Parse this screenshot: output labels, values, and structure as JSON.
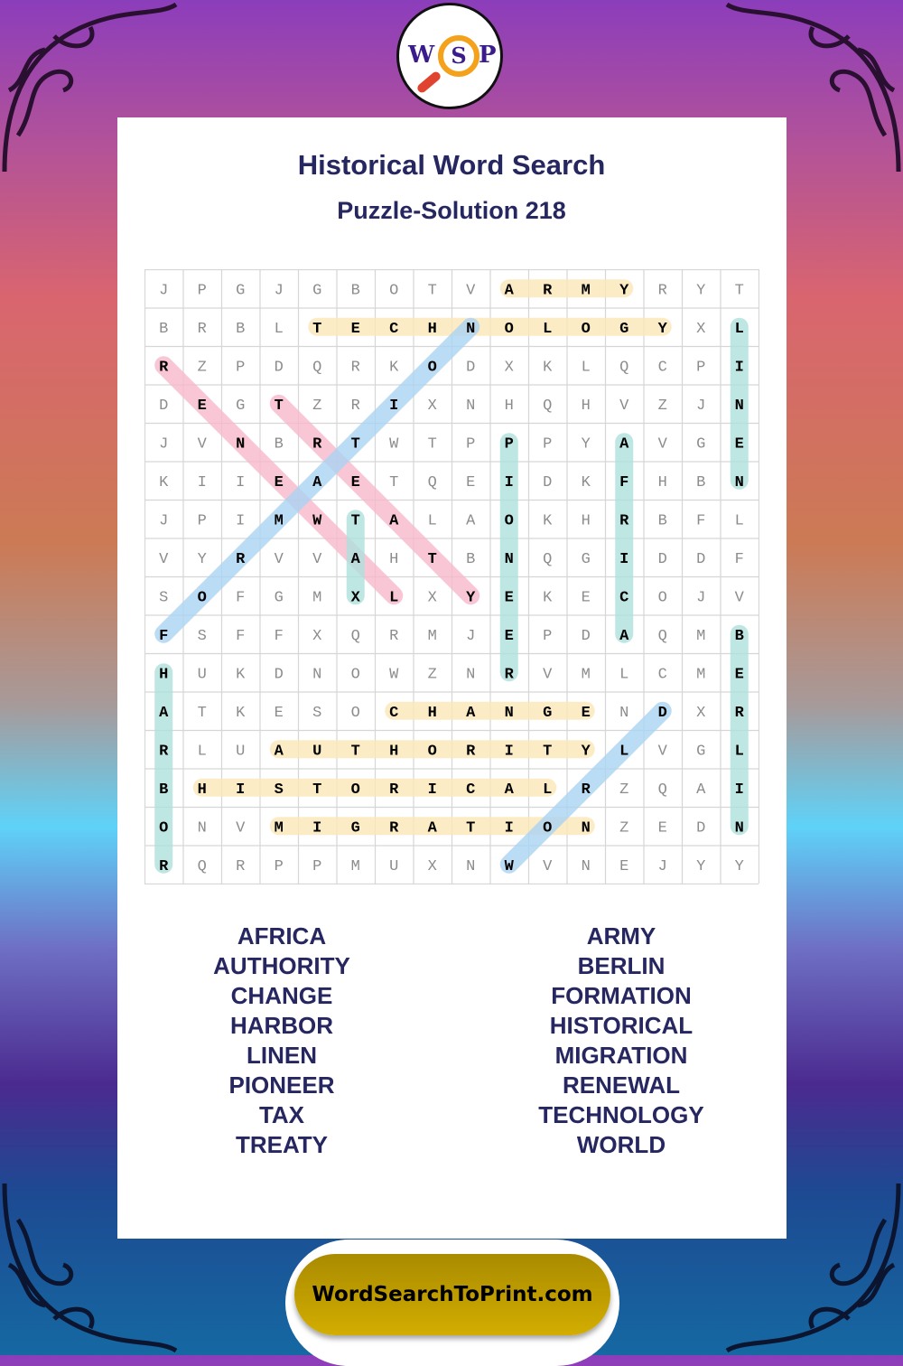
{
  "logo": {
    "letters": [
      "W",
      "S",
      "P"
    ]
  },
  "header": {
    "title": "Historical Word Search",
    "subtitle": "Puzzle-Solution 218"
  },
  "grid": {
    "rows": [
      "JPGJGBOTVARMYRYT",
      "BRBLTECHNOLOGYXL",
      "RZPDQRKODXKLQCPI",
      "DEGTZRIXNHQHVZJN",
      "JVNBRTWTPPPYAVGE",
      "KIIEAETQEIDKFHBN",
      "JPIMWTALAOKHRBFL",
      "VYRVVAHTBNQGIDDF",
      "SOFGMXLXYEKECOJV",
      "FSFFXQRMJEPDAQMB",
      "HUKDNOWZNRVMLCME",
      "ATKESOCHANGENDXR",
      "RLUAUTHORITYLVGL",
      "BHISTORICALRZQAI",
      "ONVMIGRATIONZEDN",
      "RQRPPMUXNWVNEJYY"
    ]
  },
  "highlight_colors": {
    "yellow": "#fbe7b8",
    "teal": "#aee0dc",
    "pink": "#f7b8ca",
    "blue": "#a9d3f3"
  },
  "solutions": [
    {
      "word": "ARMY",
      "start": [
        0,
        9
      ],
      "end": [
        0,
        12
      ],
      "color": "yellow"
    },
    {
      "word": "TECHNOLOGY",
      "start": [
        1,
        4
      ],
      "end": [
        1,
        13
      ],
      "color": "yellow"
    },
    {
      "word": "LINEN",
      "start": [
        1,
        15
      ],
      "end": [
        5,
        15
      ],
      "color": "teal"
    },
    {
      "word": "RENEWAL",
      "start": [
        2,
        0
      ],
      "end": [
        8,
        6
      ],
      "color": "pink"
    },
    {
      "word": "TREATY",
      "start": [
        3,
        3
      ],
      "end": [
        8,
        8
      ],
      "color": "pink"
    },
    {
      "word": "FORMATION",
      "start": [
        9,
        0
      ],
      "end": [
        1,
        8
      ],
      "color": "blue"
    },
    {
      "word": "TAX",
      "start": [
        6,
        5
      ],
      "end": [
        8,
        5
      ],
      "color": "teal"
    },
    {
      "word": "PIONEER",
      "start": [
        4,
        9
      ],
      "end": [
        10,
        9
      ],
      "color": "teal"
    },
    {
      "word": "AFRICA",
      "start": [
        4,
        12
      ],
      "end": [
        9,
        12
      ],
      "color": "teal"
    },
    {
      "word": "BERLIN",
      "start": [
        9,
        15
      ],
      "end": [
        14,
        15
      ],
      "color": "teal"
    },
    {
      "word": "HARBOR",
      "start": [
        10,
        0
      ],
      "end": [
        15,
        0
      ],
      "color": "teal"
    },
    {
      "word": "CHANGE",
      "start": [
        11,
        6
      ],
      "end": [
        11,
        11
      ],
      "color": "yellow"
    },
    {
      "word": "AUTHORITY",
      "start": [
        12,
        3
      ],
      "end": [
        12,
        11
      ],
      "color": "yellow"
    },
    {
      "word": "HISTORICAL",
      "start": [
        13,
        1
      ],
      "end": [
        13,
        10
      ],
      "color": "yellow"
    },
    {
      "word": "MIGRATION",
      "start": [
        14,
        3
      ],
      "end": [
        14,
        11
      ],
      "color": "yellow"
    },
    {
      "word": "WORLD",
      "start": [
        15,
        9
      ],
      "end": [
        11,
        13
      ],
      "color": "blue"
    }
  ],
  "word_list": {
    "left": [
      "AFRICA",
      "AUTHORITY",
      "CHANGE",
      "HARBOR",
      "LINEN",
      "PIONEER",
      "TAX",
      "TREATY"
    ],
    "right": [
      "ARMY",
      "BERLIN",
      "FORMATION",
      "HISTORICAL",
      "MIGRATION",
      "RENEWAL",
      "TECHNOLOGY",
      "WORLD"
    ]
  },
  "footer": {
    "site": "WordSearchToPrint.com"
  }
}
